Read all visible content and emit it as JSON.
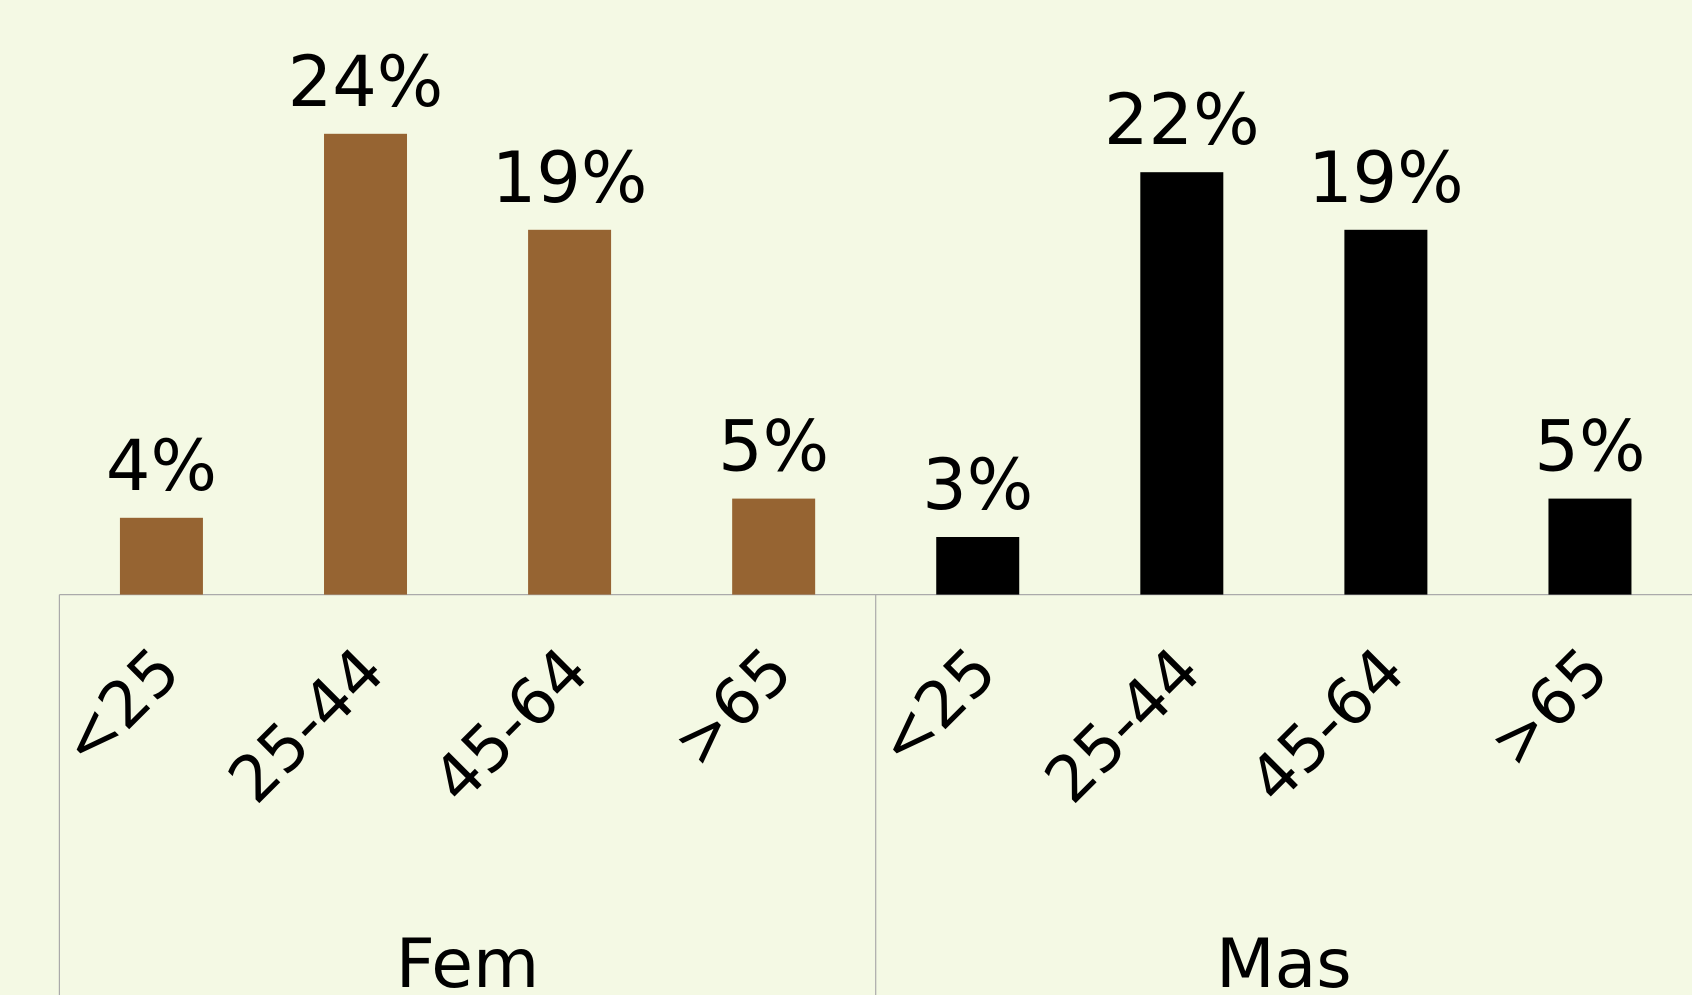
{
  "chart_data": {
    "type": "bar",
    "categories": [
      "<25",
      "25-44",
      "45-64",
      ">65"
    ],
    "series": [
      {
        "name": "Fem",
        "color": "#966432",
        "values": [
          4,
          24,
          19,
          5
        ],
        "value_labels": [
          "4%",
          "24%",
          "19%",
          "5%"
        ]
      },
      {
        "name": "Mas",
        "color": "#000000",
        "values": [
          3,
          22,
          19,
          5
        ],
        "value_labels": [
          "3%",
          "22%",
          "19%",
          "5%"
        ]
      }
    ]
  }
}
